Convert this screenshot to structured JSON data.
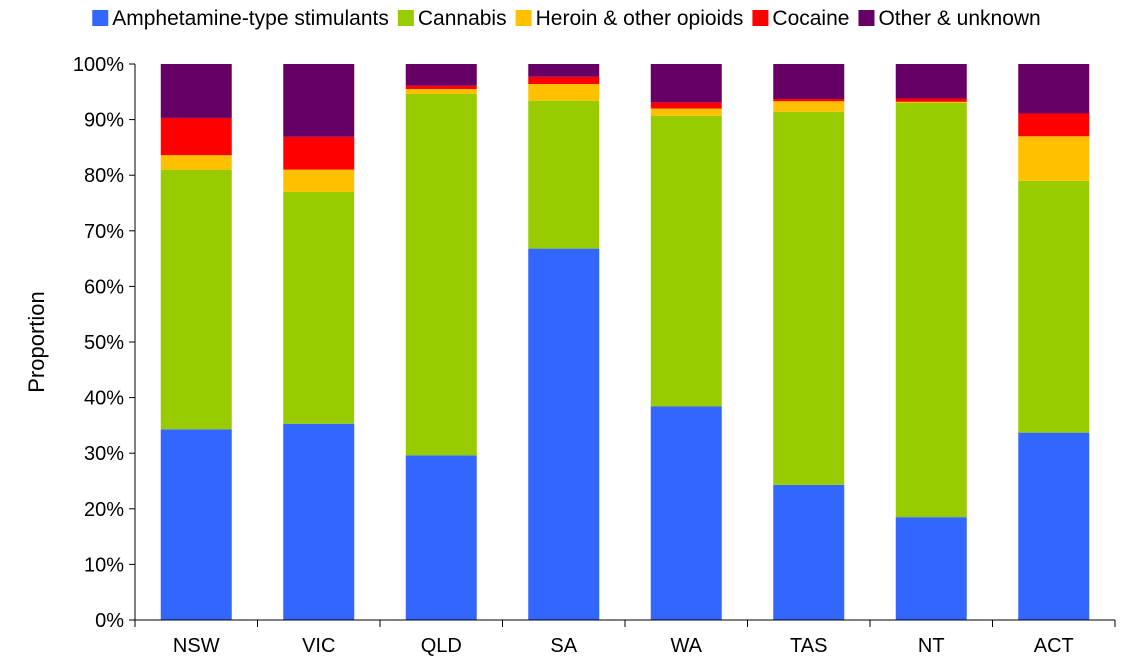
{
  "chart_data": {
    "type": "bar",
    "stacked": true,
    "normalized": true,
    "title": "",
    "xlabel": "",
    "ylabel": "Proportion",
    "ylim": [
      0,
      1
    ],
    "yticks": [
      "0%",
      "10%",
      "20%",
      "30%",
      "40%",
      "50%",
      "60%",
      "70%",
      "80%",
      "90%",
      "100%"
    ],
    "grid": false,
    "legend_position": "top",
    "categories": [
      "NSW",
      "VIC",
      "QLD",
      "SA",
      "WA",
      "TAS",
      "NT",
      "ACT"
    ],
    "series": [
      {
        "name": "Amphetamine-type stimulants",
        "color": "#3366FF",
        "values": [
          0.343,
          0.353,
          0.296,
          0.668,
          0.384,
          0.243,
          0.185,
          0.337
        ]
      },
      {
        "name": "Cannabis",
        "color": "#99CC00",
        "values": [
          0.467,
          0.417,
          0.65,
          0.266,
          0.523,
          0.671,
          0.745,
          0.453
        ]
      },
      {
        "name": "Heroin & other opioids",
        "color": "#FFC000",
        "values": [
          0.026,
          0.04,
          0.009,
          0.03,
          0.013,
          0.019,
          0.002,
          0.08
        ]
      },
      {
        "name": "Cocaine",
        "color": "#FF0000",
        "values": [
          0.067,
          0.059,
          0.006,
          0.013,
          0.011,
          0.004,
          0.006,
          0.041
        ]
      },
      {
        "name": "Other & unknown",
        "color": "#660066",
        "values": [
          0.097,
          0.131,
          0.039,
          0.023,
          0.069,
          0.063,
          0.062,
          0.089
        ]
      }
    ]
  }
}
